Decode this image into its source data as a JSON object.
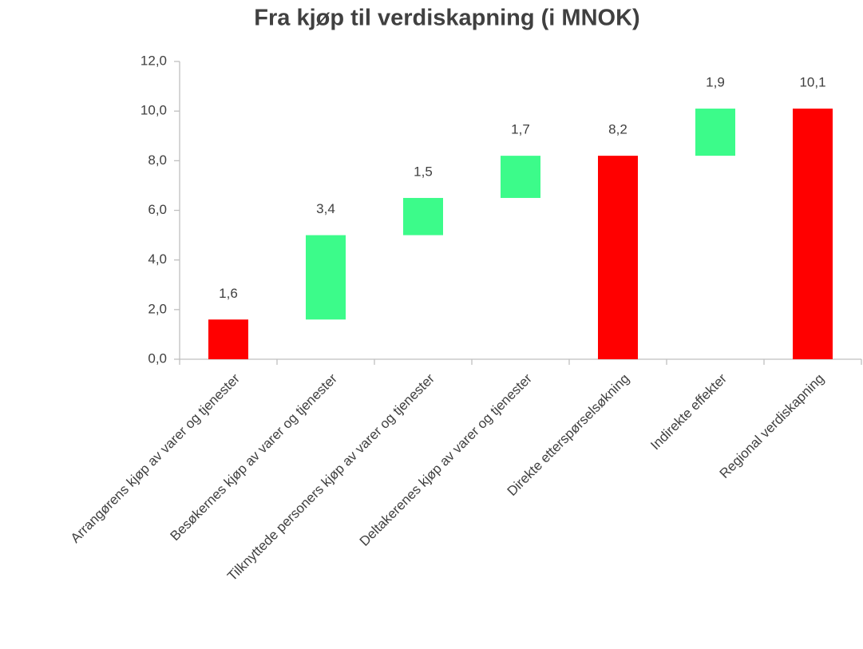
{
  "chart_data": {
    "type": "waterfall",
    "title": "Fra kjøp til verdiskapning (i MNOK)",
    "categories": [
      "Arrangørens kjøp av varer og tjenester",
      "Besøkernes kjøp av varer og tjenester",
      "Tilknyttede personers kjøp av varer og tjenester",
      "Deltakerenes kjøp av varer og tjenester",
      "Direkte etterspørselsøkning",
      "Indirekte effekter",
      "Regional verdiskapning"
    ],
    "values": [
      1.6,
      3.4,
      1.5,
      1.7,
      8.2,
      1.9,
      10.1
    ],
    "value_labels": [
      "1,6",
      "3,4",
      "1,5",
      "1,7",
      "8,2",
      "1,9",
      "10,1"
    ],
    "bar_types": [
      "total",
      "increase",
      "increase",
      "increase",
      "total",
      "increase",
      "total"
    ],
    "colors": {
      "total": "#ff0000",
      "increase": "#3cfb8a"
    },
    "ylim": [
      0,
      12
    ],
    "yticks": [
      {
        "value": 0,
        "label": "0,0"
      },
      {
        "value": 2,
        "label": "2,0"
      },
      {
        "value": 4,
        "label": "4,0"
      },
      {
        "value": 6,
        "label": "6,0"
      },
      {
        "value": 8,
        "label": "8,0"
      },
      {
        "value": 10,
        "label": "10,0"
      },
      {
        "value": 12,
        "label": "12,0"
      }
    ],
    "grid": false
  }
}
